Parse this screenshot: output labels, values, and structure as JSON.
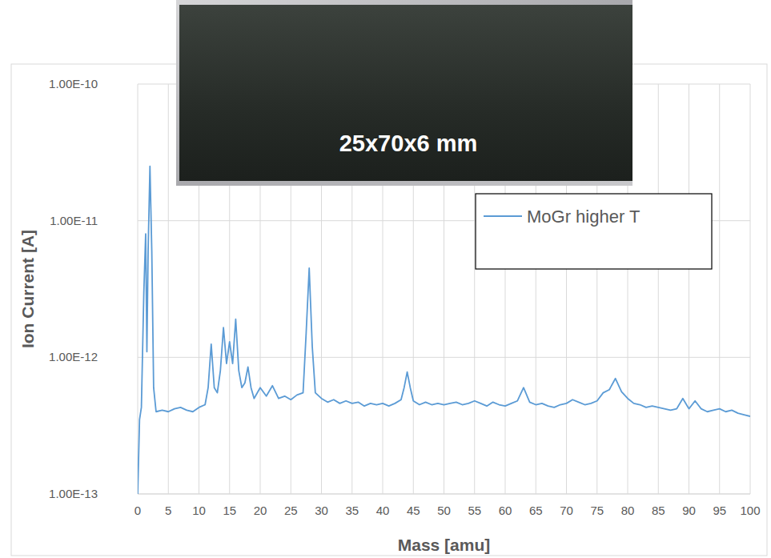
{
  "chart_data": {
    "type": "line",
    "annotation": "25x70x6 mm",
    "x_label": "Mass [amu]",
    "y_label": "Ion Current [A]",
    "log": "y",
    "grid": true,
    "legend": "upper right",
    "xlim": [
      0,
      100
    ],
    "xticks": [
      0,
      5,
      10,
      15,
      20,
      25,
      30,
      35,
      40,
      45,
      50,
      55,
      60,
      65,
      70,
      75,
      80,
      85,
      90,
      95,
      100
    ],
    "ylim": [
      1e-13,
      1e-10
    ],
    "yticks": [
      {
        "value": 1e-13,
        "label": "1.00E-13"
      },
      {
        "value": 1e-12,
        "label": "1.00E-12"
      },
      {
        "value": 1e-11,
        "label": "1.00E-11"
      },
      {
        "value": 1e-10,
        "label": "1.00E-10"
      }
    ],
    "x": [
      0,
      0.3,
      0.6,
      1.0,
      1.3,
      1.5,
      1.7,
      2.0,
      2.3,
      2.6,
      3,
      4,
      5,
      6,
      7,
      8,
      9,
      10,
      11,
      11.5,
      12,
      12.5,
      13,
      13.5,
      14,
      14.5,
      15,
      15.5,
      16,
      16.5,
      17,
      17.5,
      18,
      18.5,
      19,
      20,
      21,
      22,
      23,
      24,
      25,
      26,
      27,
      27.5,
      28,
      28.5,
      29,
      30,
      31,
      32,
      33,
      34,
      35,
      36,
      37,
      38,
      39,
      40,
      41,
      42,
      43,
      43.5,
      44,
      44.5,
      45,
      46,
      47,
      48,
      49,
      50,
      51,
      52,
      53,
      54,
      55,
      56,
      57,
      58,
      59,
      60,
      61,
      62,
      63,
      64,
      65,
      66,
      67,
      68,
      69,
      70,
      71,
      72,
      73,
      74,
      75,
      76,
      77,
      78,
      79,
      80,
      81,
      82,
      83,
      84,
      85,
      86,
      87,
      88,
      89,
      90,
      91,
      92,
      93,
      94,
      95,
      96,
      97,
      98,
      99,
      100
    ],
    "series": [
      {
        "name": "MoGr higher T",
        "color": "#5b9bd5",
        "line_style": "solid",
        "values": [
          1e-13,
          3.5e-13,
          4.3e-13,
          3e-12,
          8e-12,
          1.1e-12,
          6e-12,
          2.5e-11,
          6e-12,
          6e-13,
          4e-13,
          4.1e-13,
          4e-13,
          4.2e-13,
          4.3e-13,
          4.1e-13,
          4e-13,
          4.3e-13,
          4.5e-13,
          6e-13,
          1.25e-12,
          6e-13,
          5.5e-13,
          8e-13,
          1.65e-12,
          9e-13,
          1.3e-12,
          9e-13,
          1.9e-12,
          8e-13,
          6e-13,
          6.5e-13,
          8.5e-13,
          6e-13,
          5e-13,
          6e-13,
          5.2e-13,
          6.2e-13,
          5e-13,
          5.2e-13,
          4.9e-13,
          5.3e-13,
          5.5e-13,
          1.5e-12,
          4.5e-12,
          1.2e-12,
          5.5e-13,
          5e-13,
          4.7e-13,
          4.9e-13,
          4.6e-13,
          4.8e-13,
          4.6e-13,
          4.7e-13,
          4.4e-13,
          4.6e-13,
          4.5e-13,
          4.6e-13,
          4.4e-13,
          4.6e-13,
          4.9e-13,
          6e-13,
          7.8e-13,
          6e-13,
          4.8e-13,
          4.5e-13,
          4.7e-13,
          4.5e-13,
          4.6e-13,
          4.5e-13,
          4.6e-13,
          4.7e-13,
          4.5e-13,
          4.6e-13,
          4.8e-13,
          4.6e-13,
          4.4e-13,
          4.7e-13,
          4.5e-13,
          4.4e-13,
          4.6e-13,
          4.8e-13,
          6e-13,
          4.7e-13,
          4.5e-13,
          4.6e-13,
          4.4e-13,
          4.3e-13,
          4.5e-13,
          4.6e-13,
          4.9e-13,
          4.7e-13,
          4.5e-13,
          4.6e-13,
          4.8e-13,
          5.5e-13,
          5.8e-13,
          7e-13,
          5.6e-13,
          5e-13,
          4.6e-13,
          4.5e-13,
          4.3e-13,
          4.4e-13,
          4.3e-13,
          4.2e-13,
          4.1e-13,
          4.2e-13,
          5e-13,
          4.2e-13,
          4.8e-13,
          4.2e-13,
          4e-13,
          4.1e-13,
          4.2e-13,
          4e-13,
          4.1e-13,
          3.9e-13,
          3.8e-13,
          3.7e-13
        ]
      }
    ]
  }
}
